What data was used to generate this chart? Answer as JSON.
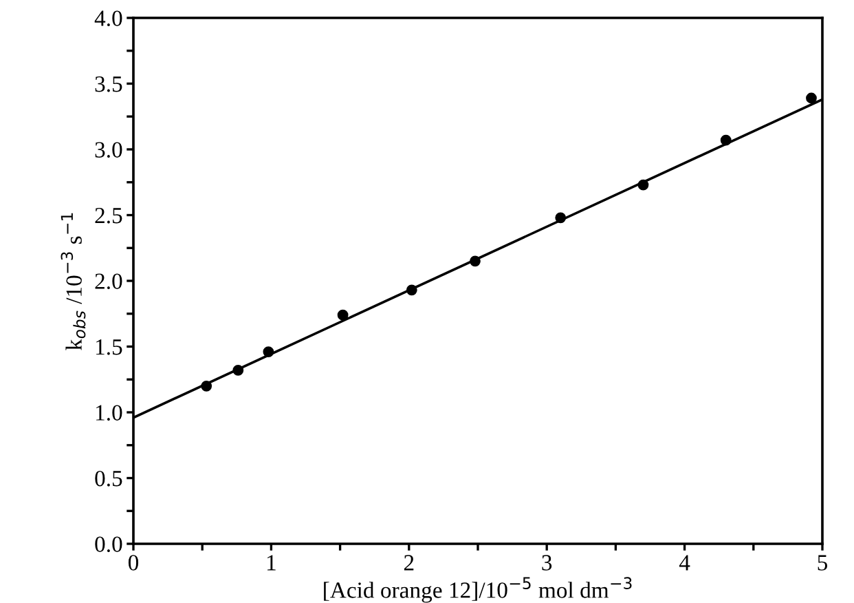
{
  "chart_data": {
    "type": "scatter",
    "xlabel": "[Acid orange 12]/10$^{−5}$ mol dm$^{−3}$",
    "ylabel": "k$_{obs}$ /10$^{−3}$ s$^{−1}$",
    "x": [
      0.53,
      0.76,
      0.98,
      1.52,
      2.02,
      2.48,
      3.1,
      3.7,
      4.3,
      4.92
    ],
    "series": [
      {
        "color": "#000000",
        "values": [
          1.2,
          1.32,
          1.46,
          1.74,
          1.93,
          2.15,
          2.48,
          2.73,
          3.07,
          3.39
        ]
      },
      {
        "type": "line",
        "color": "#000000",
        "x": [
          0,
          5
        ],
        "values": [
          0.96,
          3.38
        ],
        "marker": "none",
        "line_style": "solid"
      }
    ],
    "marker": "circle",
    "xlim": [
      0,
      5
    ],
    "ylim": [
      0,
      4
    ],
    "xticks": [
      0,
      {
        "value": 0.5,
        "label": null
      },
      1,
      {
        "value": 1.5,
        "label": null
      },
      2,
      {
        "value": 2.5,
        "label": null
      },
      3,
      {
        "value": 3.5,
        "label": null
      },
      4,
      {
        "value": 4.5,
        "label": null
      },
      5
    ],
    "yticks": [
      "0.0",
      {
        "value": 0.25,
        "label": null
      },
      {
        "value": 0.5,
        "label": "0.5"
      },
      {
        "value": 0.75,
        "label": null
      },
      {
        "value": 1,
        "label": "1.0"
      },
      {
        "value": 1.25,
        "label": null
      },
      {
        "value": 1.5,
        "label": "1.5"
      },
      {
        "value": 1.75,
        "label": null
      },
      {
        "value": 2,
        "label": "2.0"
      },
      {
        "value": 2.25,
        "label": null
      },
      {
        "value": 2.5,
        "label": "2.5"
      },
      {
        "value": 2.75,
        "label": null
      },
      {
        "value": 3,
        "label": "3.0"
      },
      {
        "value": 3.25,
        "label": null
      },
      {
        "value": 3.5,
        "label": "3.5"
      },
      {
        "value": 3.75,
        "label": null
      },
      {
        "value": 4,
        "label": "4.0"
      }
    ],
    "grid": false,
    "legend": false
  }
}
